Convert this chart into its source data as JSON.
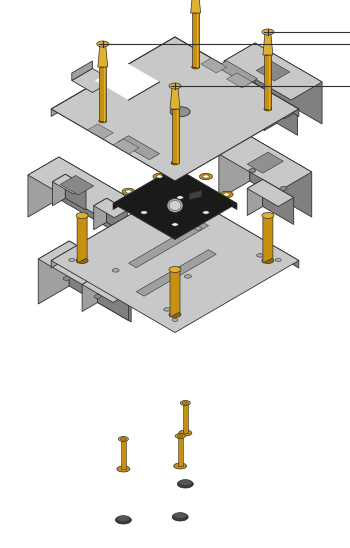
{
  "bg_color": "#ffffff",
  "gray_light": "#c8c8c8",
  "gray_mid": "#a0a0a0",
  "gray_dark": "#808080",
  "gray_darker": "#606060",
  "gray_face": "#b8b8b8",
  "gray_side_r": "#909090",
  "gray_side_l": "#a8a8a8",
  "gold": "#c89010",
  "gold_light": "#e0b030",
  "gold_dark": "#906808",
  "gold_mid": "#b08010",
  "black_pcb": "#1a1a1a",
  "dark_gray": "#4a4a4a",
  "rubber": "#3a3a3a",
  "rubber_top": "#555555",
  "outline": "#303030",
  "white": "#ffffff",
  "sensor_gray": "#b0b0b0",
  "connector_dark": "#404040"
}
